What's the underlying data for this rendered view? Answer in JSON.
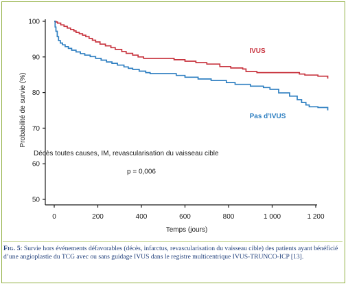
{
  "chart_data": {
    "type": "line",
    "xlabel": "Temps (jours)",
    "ylabel": "Probabilité de survie (%)",
    "xlim": [
      0,
      1270
    ],
    "ylim": [
      47,
      101
    ],
    "x_ticks": [
      0,
      200,
      400,
      600,
      800,
      1000,
      1200
    ],
    "x_tick_labels": [
      "0",
      "200",
      "400",
      "600",
      "800",
      "1 000",
      "1 200"
    ],
    "y_ticks": [
      50,
      60,
      70,
      80,
      90,
      100
    ],
    "y_tick_labels": [
      "50",
      "60",
      "70",
      "80",
      "90",
      "100"
    ],
    "grid": false,
    "series": [
      {
        "name": "IVUS",
        "color": "#c8343f",
        "x": [
          0,
          8,
          15,
          30,
          45,
          60,
          75,
          90,
          100,
          115,
          130,
          145,
          160,
          175,
          190,
          210,
          235,
          260,
          280,
          310,
          330,
          360,
          385,
          410,
          520,
          550,
          600,
          650,
          700,
          760,
          810,
          865,
          880,
          930,
          1005,
          1060,
          1125,
          1150,
          1175,
          1210,
          1225,
          1250,
          1255
        ],
        "y": [
          100,
          99.8,
          99.5,
          99.0,
          98.6,
          98.1,
          97.7,
          97.3,
          96.9,
          96.5,
          96.1,
          95.7,
          95.2,
          94.7,
          94.2,
          93.6,
          93.1,
          92.6,
          92.1,
          91.5,
          91.0,
          90.5,
          90.0,
          89.6,
          89.6,
          89.2,
          88.8,
          88.4,
          88.0,
          87.3,
          86.9,
          86.6,
          85.9,
          85.6,
          85.6,
          85.6,
          85.2,
          84.9,
          84.9,
          84.6,
          84.6,
          84.6,
          83.9
        ]
      },
      {
        "name": "Pas d’IVUS",
        "color": "#2e7fc1",
        "x": [
          0,
          4,
          8,
          14,
          20,
          28,
          38,
          50,
          65,
          80,
          100,
          120,
          140,
          165,
          190,
          215,
          240,
          265,
          290,
          320,
          340,
          360,
          390,
          420,
          440,
          560,
          600,
          660,
          720,
          790,
          830,
          900,
          960,
          990,
          1030,
          1080,
          1115,
          1135,
          1155,
          1170,
          1200,
          1210,
          1255
        ],
        "y": [
          100,
          98.4,
          97.2,
          95.7,
          94.6,
          93.9,
          93.4,
          92.9,
          92.4,
          91.9,
          91.4,
          90.9,
          90.5,
          90.1,
          89.6,
          89.1,
          88.6,
          88.2,
          87.7,
          87.2,
          86.8,
          86.5,
          86.0,
          85.6,
          85.3,
          84.8,
          84.3,
          83.8,
          83.4,
          82.8,
          82.3,
          81.8,
          81.4,
          80.9,
          79.9,
          79.0,
          78.0,
          77.2,
          76.5,
          76.0,
          76.0,
          75.8,
          75.0
        ]
      }
    ],
    "annotations": [
      {
        "text": "Décès toutes causes, IM, revascularisation du vaisseau cible",
        "x": 330,
        "y": 62.4,
        "color": "#1a1a1a"
      },
      {
        "text": "p = 0,006",
        "x": 400,
        "y": 57.2,
        "color": "#1a1a1a"
      }
    ]
  },
  "caption": {
    "label": "Fig. 5",
    "text": ": Survie hors événements défavorables (décès, infarctus, revascularisation du vaisseau cible) des patients ayant bénéficié d’une angioplastie du TCG avec ou sans guidage IVUS dans le registre multicentrique IVUS-TRUNCO-ICP [13]."
  }
}
